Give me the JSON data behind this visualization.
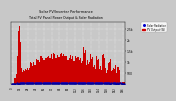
{
  "title": "Total PV Panel Power Output & Solar Radiation",
  "title2": "Solar PV/Inverter Performance",
  "bar_color": "#cc0000",
  "line_color": "#0000cc",
  "bg_color": "#c8c8c8",
  "plot_bg": "#c8c8c8",
  "ylim": [
    0,
    2800
  ],
  "yticks": [
    500,
    1000,
    1500,
    2000,
    2500
  ],
  "ytick_labels": [
    "500",
    "1k",
    "1.5k",
    "2k",
    "2.5k"
  ],
  "legend_pv": "PV Output (W)",
  "legend_sol": "Solar Radiation",
  "num_bars": 200
}
